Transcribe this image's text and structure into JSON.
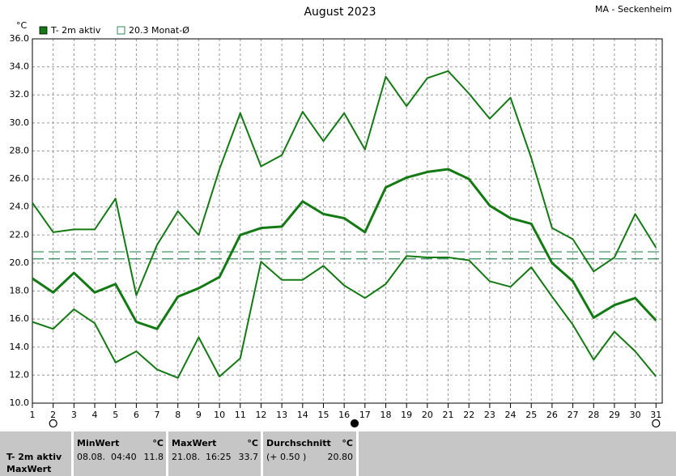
{
  "chart_data": {
    "type": "line",
    "title": "August 2023",
    "station": "MA - Seckenheim",
    "y_unit": "°C",
    "x": [
      1,
      2,
      3,
      4,
      5,
      6,
      7,
      8,
      9,
      10,
      11,
      12,
      13,
      14,
      15,
      16,
      17,
      18,
      19,
      20,
      21,
      22,
      23,
      24,
      25,
      26,
      27,
      28,
      29,
      30,
      31
    ],
    "xlim": [
      1,
      31.3
    ],
    "xticks": [
      1,
      2,
      3,
      4,
      5,
      6,
      7,
      8,
      9,
      10,
      11,
      12,
      13,
      14,
      15,
      16,
      17,
      18,
      19,
      20,
      21,
      22,
      23,
      24,
      25,
      26,
      27,
      28,
      29,
      30,
      31
    ],
    "ylim": [
      10,
      36
    ],
    "yticks": [
      {
        "value": 10,
        "label": "10.0"
      },
      {
        "value": 12,
        "label": "12.0"
      },
      {
        "value": 14,
        "label": "14.0"
      },
      {
        "value": 16,
        "label": "16.0"
      },
      {
        "value": 18,
        "label": "18.0"
      },
      {
        "value": 20,
        "label": "20.0"
      },
      {
        "value": 22,
        "label": "22.0"
      },
      {
        "value": 24,
        "label": "24.0"
      },
      {
        "value": 26,
        "label": "26.0"
      },
      {
        "value": 28,
        "label": "28.0"
      },
      {
        "value": 30,
        "label": "30.0"
      },
      {
        "value": 32,
        "label": "32.0"
      },
      {
        "value": 34,
        "label": "34.0"
      },
      {
        "value": 36,
        "label": "36.0"
      }
    ],
    "grid": true,
    "series": [
      {
        "name": "T- 2m aktiv",
        "color": "#137a13",
        "values": [
          18.9,
          17.9,
          19.3,
          17.9,
          18.5,
          15.8,
          15.3,
          17.6,
          18.2,
          19.0,
          22.0,
          22.5,
          22.6,
          24.4,
          23.5,
          23.2,
          22.2,
          25.4,
          26.1,
          26.5,
          26.7,
          26.0,
          24.1,
          23.2,
          22.8,
          20.0,
          18.7,
          16.1,
          17.0,
          17.5,
          15.9
        ]
      }
    ],
    "max_values": [
      24.3,
      22.2,
      22.4,
      22.4,
      24.6,
      17.7,
      21.3,
      23.7,
      22.0,
      26.7,
      30.7,
      26.9,
      27.7,
      30.8,
      28.7,
      30.7,
      28.1,
      33.3,
      31.2,
      33.2,
      33.7,
      32.1,
      30.3,
      31.8,
      27.5,
      22.5,
      21.7,
      19.4,
      20.4,
      23.5,
      21.1
    ],
    "min_values": [
      15.8,
      15.3,
      16.7,
      15.7,
      12.9,
      13.7,
      12.4,
      11.8,
      14.7,
      11.9,
      13.2,
      20.1,
      18.8,
      18.8,
      19.8,
      18.4,
      17.5,
      18.5,
      20.5,
      20.4,
      20.4,
      20.2,
      18.7,
      18.3,
      19.7,
      17.6,
      15.6,
      13.1,
      15.1,
      13.7,
      11.9
    ],
    "reference_lines": [
      {
        "value": 20.8,
        "color": "#2e8b57"
      },
      {
        "label": "20.3 Monat-Ø",
        "value": 20.3,
        "color": "#2e8b57"
      }
    ],
    "moon_phases": [
      {
        "x": 2,
        "fill": "none"
      },
      {
        "x": 16.5,
        "fill": "#000"
      },
      {
        "x": 31,
        "fill": "none"
      }
    ]
  },
  "footer": {
    "row_labels": [
      "T- 2m aktiv",
      "MaxWert"
    ],
    "cells": [
      {
        "title": "MinWert",
        "unit": "°C",
        "when": "08.08.  04:40",
        "value": "11.8"
      },
      {
        "title": "MaxWert",
        "unit": "°C",
        "when": "21.08.  16:25",
        "value": "33.7"
      },
      {
        "title": "Durchschnitt",
        "unit": "°C",
        "when": "(+ 0.50 )",
        "value": "20.80"
      }
    ]
  }
}
